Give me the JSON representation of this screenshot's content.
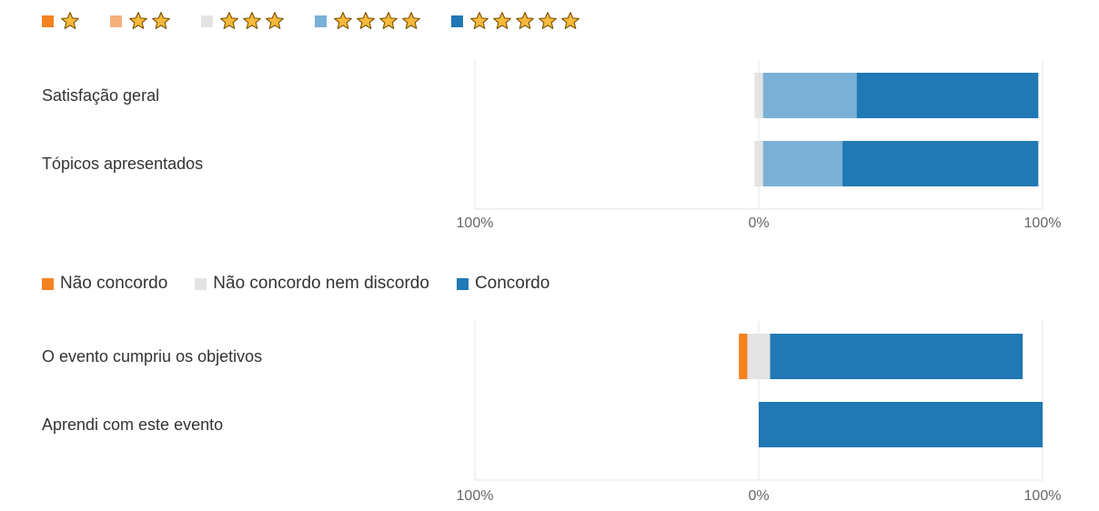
{
  "legends": {
    "rating": [
      {
        "stars": 1,
        "color": "#f58220"
      },
      {
        "stars": 2,
        "color": "#f5b07a"
      },
      {
        "stars": 3,
        "color": "#e3e3e3"
      },
      {
        "stars": 4,
        "color": "#7ab0d6"
      },
      {
        "stars": 5,
        "color": "#2078b4"
      }
    ],
    "agreement": [
      {
        "label": "Não concordo",
        "color": "#f58220"
      },
      {
        "label": "Não concordo nem discordo",
        "color": "#e3e3e3"
      },
      {
        "label": "Concordo",
        "color": "#2078b4"
      }
    ]
  },
  "star_icon": "star-icon",
  "chart_data": [
    {
      "type": "bar",
      "orientation": "horizontal",
      "stacking": "diverging",
      "categories": [
        "Satisfação geral",
        "Tópicos apresentados"
      ],
      "series": [
        {
          "name": "1 star",
          "color": "#f58220",
          "side": "negative",
          "values": [
            0,
            0
          ]
        },
        {
          "name": "2 stars",
          "color": "#f5b07a",
          "side": "negative",
          "values": [
            0,
            0
          ]
        },
        {
          "name": "3 stars",
          "color": "#e3e3e3",
          "side": "neutral",
          "values": [
            3,
            3
          ]
        },
        {
          "name": "4 stars",
          "color": "#7ab0d6",
          "side": "positive",
          "values": [
            33,
            28
          ]
        },
        {
          "name": "5 stars",
          "color": "#2078b4",
          "side": "positive",
          "values": [
            64,
            69
          ]
        }
      ],
      "xlim": [
        -100,
        100
      ],
      "tick_labels": [
        "100%",
        "0%",
        "100%"
      ],
      "grid": true,
      "legend": "top-left"
    },
    {
      "type": "bar",
      "orientation": "horizontal",
      "stacking": "diverging",
      "categories": [
        "O evento cumpriu os objetivos",
        "Aprendi com este evento"
      ],
      "series": [
        {
          "name": "Não concordo",
          "color": "#f58220",
          "side": "negative",
          "values": [
            3,
            0
          ]
        },
        {
          "name": "Não concordo nem discordo",
          "color": "#e3e3e3",
          "side": "neutral",
          "values": [
            8,
            0
          ]
        },
        {
          "name": "Concordo",
          "color": "#2078b4",
          "side": "positive",
          "values": [
            89,
            100
          ]
        }
      ],
      "xlim": [
        -100,
        100
      ],
      "tick_labels": [
        "100%",
        "0%",
        "100%"
      ],
      "grid": true,
      "legend": "top-left"
    }
  ]
}
